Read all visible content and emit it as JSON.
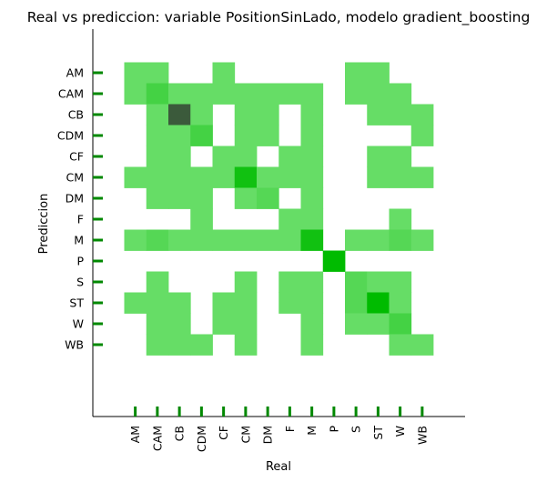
{
  "chart_data": {
    "type": "heatmap",
    "title": "Real vs prediccion: variable PositionSinLado, modelo gradient_boosting",
    "xlabel": "Real",
    "ylabel": "Prediccion",
    "x_categories": [
      "AM",
      "CAM",
      "CB",
      "CDM",
      "CF",
      "CM",
      "DM",
      "F",
      "M",
      "P",
      "S",
      "ST",
      "W",
      "WB"
    ],
    "y_categories": [
      "AM",
      "CAM",
      "CB",
      "CDM",
      "CF",
      "CM",
      "DM",
      "F",
      "M",
      "P",
      "S",
      "ST",
      "W",
      "WB"
    ],
    "grid": false,
    "colors": {
      "low": "#66dd66",
      "high": "#00bb00",
      "outlier": "#3b5a3b",
      "tick": "#008800"
    },
    "values": [
      [
        1,
        1,
        0,
        0,
        1,
        0,
        0,
        0,
        0,
        0,
        1,
        1,
        0,
        0
      ],
      [
        1,
        3,
        1,
        1,
        1,
        1,
        1,
        1,
        1,
        0,
        1,
        1,
        1,
        0
      ],
      [
        0,
        1,
        9,
        1,
        0,
        1,
        1,
        0,
        1,
        0,
        0,
        1,
        1,
        1
      ],
      [
        0,
        1,
        1,
        3,
        0,
        1,
        1,
        0,
        1,
        0,
        0,
        0,
        0,
        1
      ],
      [
        0,
        1,
        1,
        0,
        1,
        1,
        0,
        1,
        1,
        0,
        0,
        1,
        1,
        0
      ],
      [
        1,
        1,
        1,
        1,
        1,
        6,
        1,
        1,
        1,
        0,
        0,
        1,
        1,
        1
      ],
      [
        0,
        1,
        1,
        1,
        0,
        1,
        2,
        0,
        1,
        0,
        0,
        0,
        0,
        0
      ],
      [
        0,
        0,
        0,
        1,
        0,
        0,
        0,
        1,
        1,
        0,
        0,
        0,
        1,
        0
      ],
      [
        1,
        2,
        1,
        1,
        1,
        1,
        1,
        1,
        6,
        0,
        1,
        1,
        2,
        1
      ],
      [
        0,
        0,
        0,
        0,
        0,
        0,
        0,
        0,
        0,
        7,
        0,
        0,
        0,
        0
      ],
      [
        0,
        1,
        0,
        0,
        0,
        1,
        0,
        1,
        1,
        0,
        2,
        1,
        1,
        0
      ],
      [
        1,
        1,
        1,
        0,
        1,
        1,
        0,
        1,
        1,
        0,
        2,
        7,
        1,
        0
      ],
      [
        0,
        1,
        1,
        0,
        1,
        1,
        0,
        0,
        1,
        0,
        1,
        1,
        3,
        0
      ],
      [
        0,
        1,
        1,
        1,
        0,
        1,
        0,
        0,
        1,
        0,
        0,
        0,
        1,
        1
      ]
    ]
  }
}
